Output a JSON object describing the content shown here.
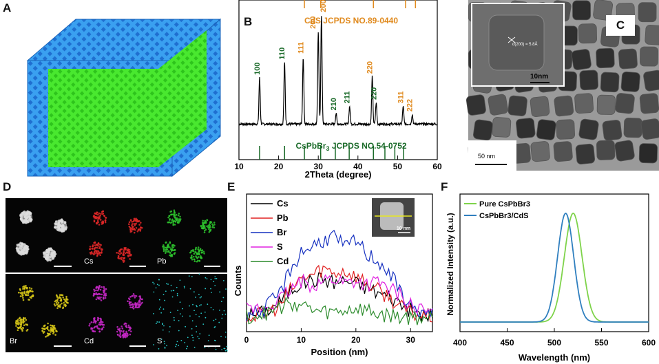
{
  "panels": {
    "A": {
      "label": "A"
    },
    "B": {
      "label": "B"
    },
    "C": {
      "label": "C",
      "inset_scale": "10nm",
      "inset_d": "d(200) = 5.8Å",
      "scale": "50 nm"
    },
    "D": {
      "label": "D",
      "maps": [
        "Cs",
        "Pb",
        "Br",
        "Cd",
        "S"
      ]
    },
    "E": {
      "label": "E",
      "inset_scale": "10 nm"
    },
    "F": {
      "label": "F"
    }
  },
  "chart_data": [
    {
      "panel": "B",
      "type": "line",
      "xlabel": "2Theta (degree)",
      "ylabel": "",
      "xlim": [
        10,
        60
      ],
      "xticks": [
        10,
        20,
        30,
        40,
        50,
        60
      ],
      "ref_top": {
        "name": "CdS JCPDS NO.89-0440",
        "positions": [
          26.5,
          30.6,
          43.9,
          52.0,
          54.5
        ],
        "color": "#e08a1e"
      },
      "ref_bottom": {
        "name": "CsPbBr3 JCPDS NO.54-0752",
        "positions": [
          15.2,
          21.5,
          26.5,
          30.6,
          34.3,
          37.8,
          43.9,
          46.8,
          49.3,
          51.5
        ],
        "color": "#1b6b2a"
      },
      "peaks": [
        {
          "x": 15.2,
          "h": 0.39,
          "label": "100",
          "color": "#1b6b2a"
        },
        {
          "x": 21.5,
          "h": 0.52,
          "label": "110",
          "color": "#1b6b2a"
        },
        {
          "x": 26.2,
          "h": 0.57,
          "label": "111",
          "color": "#e08a1e"
        },
        {
          "x": 30.0,
          "h": 0.78,
          "label": "200",
          "color": "#e08a1e"
        },
        {
          "x": 30.8,
          "h": 0.92,
          "label": "200",
          "color": "#e08a1e"
        },
        {
          "x": 34.5,
          "h": 0.09,
          "label": "210",
          "color": "#1b6b2a"
        },
        {
          "x": 37.9,
          "h": 0.15,
          "label": "211",
          "color": "#1b6b2a"
        },
        {
          "x": 43.6,
          "h": 0.4,
          "label": "220",
          "color": "#e08a1e"
        },
        {
          "x": 44.6,
          "h": 0.18,
          "label": "220",
          "color": "#1b6b2a"
        },
        {
          "x": 51.4,
          "h": 0.15,
          "label": "311",
          "color": "#e08a1e"
        },
        {
          "x": 53.7,
          "h": 0.08,
          "label": "222",
          "color": "#e08a1e"
        }
      ]
    },
    {
      "panel": "E",
      "type": "line",
      "xlabel": "Position (nm)",
      "ylabel": "Counts",
      "xlim": [
        0,
        34
      ],
      "xticks": [
        0,
        10,
        20,
        30
      ],
      "series": [
        {
          "name": "Cs",
          "color": "#000000",
          "x": [
            0,
            3,
            6,
            8,
            10,
            12,
            14,
            16,
            18,
            20,
            22,
            24,
            26,
            28,
            30,
            32,
            34
          ],
          "y": [
            0.05,
            0.08,
            0.18,
            0.3,
            0.38,
            0.4,
            0.42,
            0.38,
            0.4,
            0.37,
            0.33,
            0.28,
            0.24,
            0.18,
            0.1,
            0.06,
            0.04
          ]
        },
        {
          "name": "Pb",
          "color": "#e02020",
          "x": [
            0,
            3,
            6,
            8,
            10,
            12,
            14,
            16,
            18,
            20,
            22,
            24,
            26,
            28,
            30,
            32,
            34
          ],
          "y": [
            0.04,
            0.06,
            0.14,
            0.3,
            0.42,
            0.46,
            0.52,
            0.48,
            0.5,
            0.44,
            0.38,
            0.3,
            0.24,
            0.14,
            0.08,
            0.05,
            0.04
          ]
        },
        {
          "name": "Br",
          "color": "#1530c0",
          "x": [
            0,
            3,
            6,
            8,
            10,
            12,
            14,
            16,
            18,
            20,
            22,
            24,
            26,
            28,
            30,
            32,
            34
          ],
          "y": [
            0.06,
            0.1,
            0.26,
            0.5,
            0.68,
            0.74,
            0.8,
            0.84,
            0.72,
            0.8,
            0.66,
            0.6,
            0.48,
            0.3,
            0.14,
            0.08,
            0.05
          ]
        },
        {
          "name": "S",
          "color": "#e020e0",
          "x": [
            0,
            3,
            6,
            8,
            10,
            12,
            14,
            16,
            18,
            20,
            22,
            24,
            26,
            28,
            30,
            32,
            34
          ],
          "y": [
            0.1,
            0.12,
            0.2,
            0.3,
            0.38,
            0.36,
            0.4,
            0.42,
            0.38,
            0.4,
            0.36,
            0.38,
            0.32,
            0.26,
            0.16,
            0.1,
            0.08
          ]
        },
        {
          "name": "Cd",
          "color": "#2a8a2a",
          "x": [
            0,
            3,
            6,
            8,
            10,
            12,
            14,
            16,
            18,
            20,
            22,
            24,
            26,
            28,
            30,
            32,
            34
          ],
          "y": [
            0.04,
            0.06,
            0.12,
            0.18,
            0.16,
            0.1,
            0.08,
            0.08,
            0.1,
            0.12,
            0.1,
            0.06,
            0.05,
            0.04,
            0.03,
            0.03,
            0.03
          ]
        }
      ]
    },
    {
      "panel": "F",
      "type": "line",
      "xlabel": "Wavelength (nm)",
      "ylabel": "Normalized Intensity (a.u.)",
      "xlim": [
        400,
        600
      ],
      "xticks": [
        400,
        450,
        500,
        550,
        600
      ],
      "series": [
        {
          "name": "Pure CsPbBr3",
          "color": "#7ed34a",
          "peak": 520,
          "fwhm": 22
        },
        {
          "name": "CsPbBr3/CdS",
          "color": "#2f7fbf",
          "peak": 512,
          "fwhm": 20
        }
      ]
    }
  ]
}
